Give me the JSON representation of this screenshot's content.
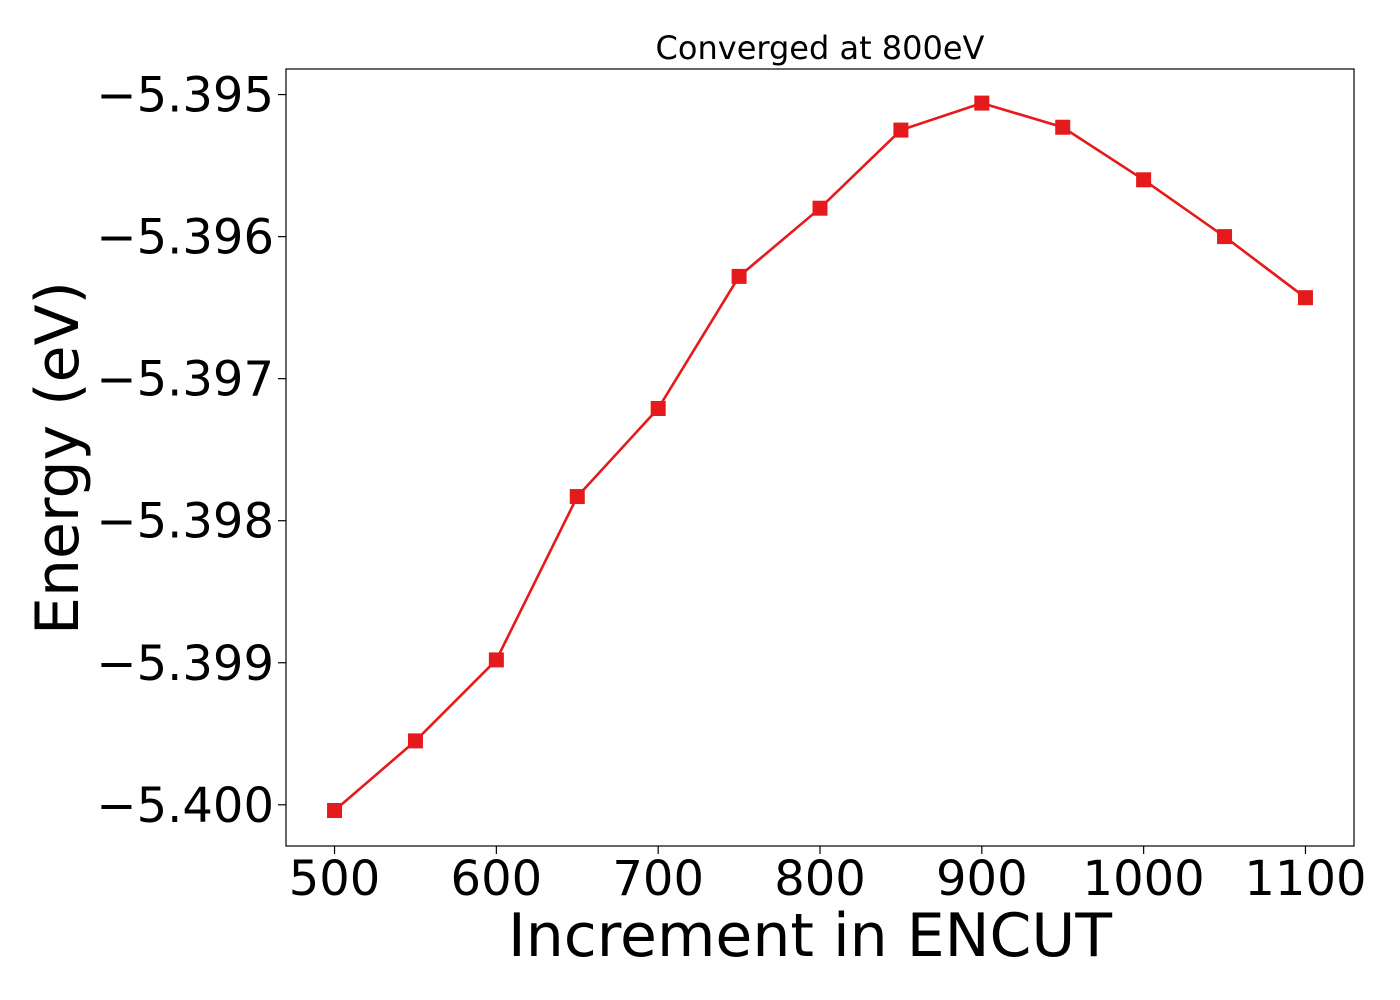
{
  "chart_data": {
    "type": "line",
    "title": "Converged at 800eV",
    "xlabel": "Increment in ENCUT",
    "ylabel": "Energy (eV)",
    "x": [
      500,
      550,
      600,
      650,
      700,
      750,
      800,
      850,
      900,
      950,
      1000,
      1050,
      1100
    ],
    "series": [
      {
        "values": [
          -5.40004,
          -5.39955,
          -5.39898,
          -5.39783,
          -5.39721,
          -5.39628,
          -5.3958,
          -5.39525,
          -5.39506,
          -5.39523,
          -5.3956,
          -5.396,
          -5.39643
        ],
        "color": "#e41a1c",
        "marker": "square"
      }
    ],
    "xticks": [
      500,
      600,
      700,
      800,
      900,
      1000,
      1100
    ],
    "xtick_labels": [
      "500",
      "600",
      "700",
      "800",
      "900",
      "1000",
      "1100"
    ],
    "yticks": [
      -5.395,
      -5.396,
      -5.397,
      -5.398,
      -5.399,
      -5.4
    ],
    "ytick_labels": [
      "−5.395",
      "−5.396",
      "−5.397",
      "−5.398",
      "−5.399",
      "−5.400"
    ],
    "xlim": [
      470,
      1130
    ],
    "ylim": [
      -5.40029,
      -5.39482
    ],
    "grid": false,
    "legend": "none"
  }
}
